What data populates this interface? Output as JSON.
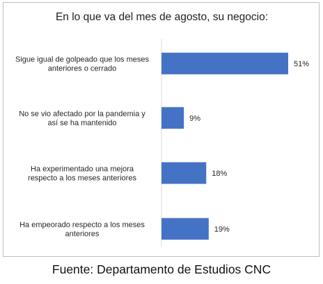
{
  "chart_data": {
    "type": "bar",
    "orientation": "horizontal",
    "title": "En lo que va del mes de agosto, su negocio:",
    "categories": [
      [
        "Sigue igual de golpeado que los meses",
        "anteriores o cerrado"
      ],
      [
        "No se vio afectado por la pandemia y",
        "así se ha mantenido"
      ],
      [
        "Ha experimentado una mejora",
        "respecto a los meses anteriores"
      ],
      [
        "Ha empeorado respecto a los meses",
        "anteriores"
      ]
    ],
    "values": [
      51,
      9,
      18,
      19
    ],
    "value_labels": [
      "51%",
      "9%",
      "18%",
      "19%"
    ],
    "xlim": [
      0,
      51
    ],
    "bar_color": "#4472c4",
    "grid": false
  },
  "source": "Fuente: Departamento de Estudios CNC"
}
